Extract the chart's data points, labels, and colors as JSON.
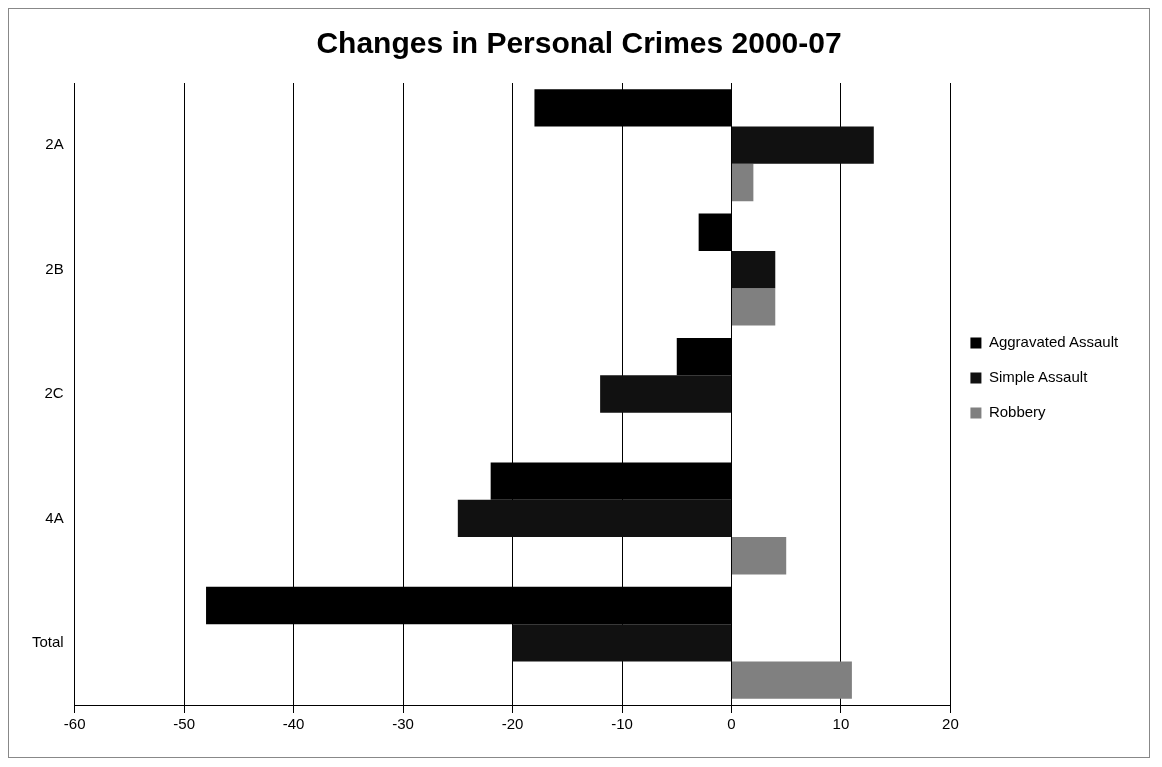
{
  "chart_data": {
    "type": "bar",
    "orientation": "horizontal",
    "title": "Changes in Personal Crimes 2000-07",
    "categories": [
      "2A",
      "2B",
      "2C",
      "4A",
      "Total"
    ],
    "series": [
      {
        "name": "Aggravated Assault",
        "color": "#000000",
        "values": [
          -18,
          -3,
          -5,
          -22,
          -48
        ]
      },
      {
        "name": "Simple Assault",
        "color": "#111111",
        "values": [
          13,
          4,
          -12,
          -25,
          -20
        ]
      },
      {
        "name": "Robbery",
        "color": "#808080",
        "values": [
          2,
          4,
          0,
          5,
          11
        ]
      }
    ],
    "xlim": [
      -60,
      20
    ],
    "xticks": [
      -60,
      -50,
      -40,
      -30,
      -20,
      -10,
      0,
      10,
      20
    ],
    "grid": "x",
    "legend": "right"
  }
}
